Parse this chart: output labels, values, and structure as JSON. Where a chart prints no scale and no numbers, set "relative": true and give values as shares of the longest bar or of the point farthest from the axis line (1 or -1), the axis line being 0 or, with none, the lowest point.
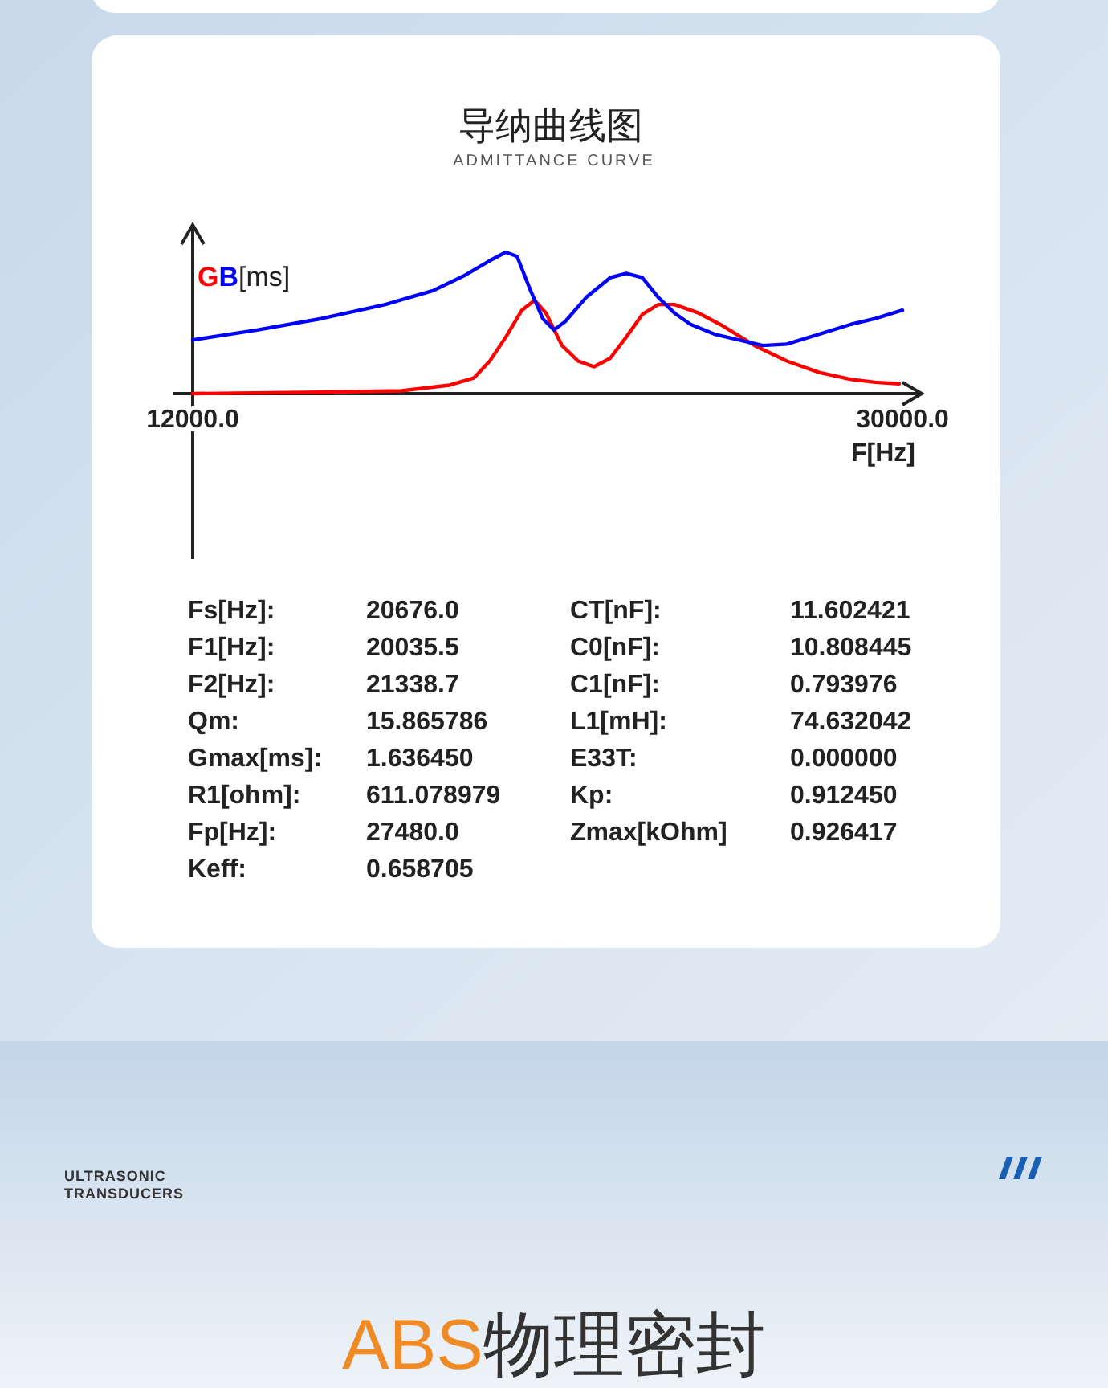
{
  "chart_data": {
    "type": "line",
    "title": "导纳曲线图",
    "subtitle": "ADMITTANCE CURVE",
    "ylabel": "[ms]",
    "xlabel": "F[Hz]",
    "relative": true,
    "xlim": [
      12000,
      30000
    ],
    "xticks": [
      {
        "value": 12000,
        "label": "12000.0"
      },
      {
        "value": 30000,
        "label": "30000.0"
      }
    ],
    "series": [
      {
        "name": "G",
        "color": "#ff0000",
        "x": [
          12000,
          15258,
          17294,
          18516,
          19127,
          19534,
          19941,
          20348,
          20674,
          20959,
          21366,
          21774,
          22181,
          22588,
          22995,
          23403,
          23810,
          24217,
          24828,
          25439,
          26253,
          27068,
          27882,
          28697,
          29308,
          29919
        ],
        "values": [
          0,
          0.01,
          0.02,
          0.06,
          0.11,
          0.23,
          0.4,
          0.59,
          0.66,
          0.57,
          0.34,
          0.23,
          0.19,
          0.25,
          0.4,
          0.56,
          0.63,
          0.63,
          0.57,
          0.48,
          0.34,
          0.23,
          0.15,
          0.1,
          0.08,
          0.07
        ]
      },
      {
        "name": "B",
        "color": "#0000ff",
        "x": [
          12000,
          13629,
          15258,
          16887,
          18109,
          18923,
          19534,
          19941,
          20226,
          20552,
          20878,
          21163,
          21448,
          21977,
          22588,
          22995,
          23403,
          23810,
          24217,
          24624,
          25235,
          25846,
          26457,
          27068,
          27882,
          28697,
          29308,
          30000
        ],
        "values": [
          0.38,
          0.45,
          0.53,
          0.63,
          0.73,
          0.84,
          0.94,
          1,
          0.97,
          0.74,
          0.53,
          0.45,
          0.51,
          0.68,
          0.82,
          0.85,
          0.82,
          0.68,
          0.57,
          0.49,
          0.42,
          0.38,
          0.34,
          0.35,
          0.42,
          0.49,
          0.53,
          0.59
        ]
      }
    ],
    "annotations": [
      "Fs[Hz]:",
      "20676.0",
      "F1[Hz]:",
      "20035.5",
      "F2[Hz]:",
      "21338.7",
      "Qm:",
      "15.865786",
      "Gmax[ms]:",
      "1.636450",
      "R1[ohm]:",
      "611.078979",
      "Fp[Hz]:",
      "27480.0",
      "Keff:",
      "0.658705",
      "CT[nF]:",
      "11.602421",
      "C0[nF]:",
      "10.808445",
      "C1[nF]:",
      "0.793976",
      "L1[mH]:",
      "74.632042",
      "E33T:",
      "0.000000",
      "Kp:",
      "0.912450",
      "Zmax[kOhm]",
      "0.926417",
      "ULTRASONIC",
      "TRANSDUCERS",
      "ABS物理密封"
    ]
  }
}
